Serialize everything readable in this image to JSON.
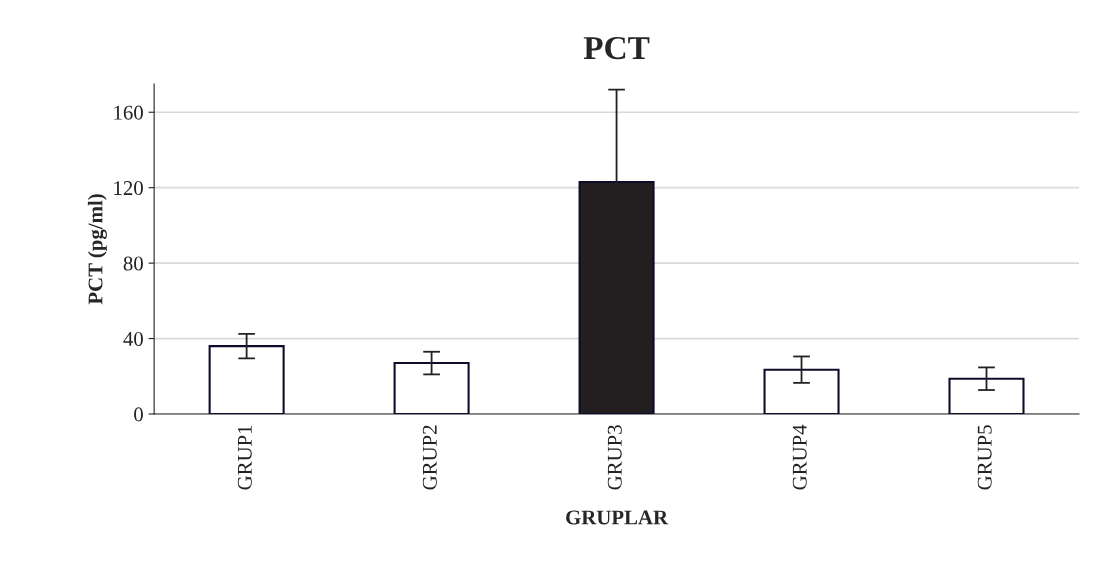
{
  "chart_data": {
    "type": "bar",
    "title": "PCT",
    "xlabel": "GRUPLAR",
    "ylabel": "PCT (pg/ml)",
    "categories": [
      "GRUP1",
      "GRUP2",
      "GRUP3",
      "GRUP4",
      "GRUP5"
    ],
    "values": [
      36,
      27,
      123,
      23.5,
      18.7
    ],
    "errors": [
      6.5,
      6,
      49,
      7,
      6
    ],
    "colors": [
      "#ffffff",
      "#ffffff",
      "#231f20",
      "#ffffff",
      "#ffffff"
    ],
    "ylim": [
      0,
      175
    ],
    "yticks": [
      0,
      40,
      80,
      120,
      160
    ],
    "grid": "y",
    "legend": false
  }
}
